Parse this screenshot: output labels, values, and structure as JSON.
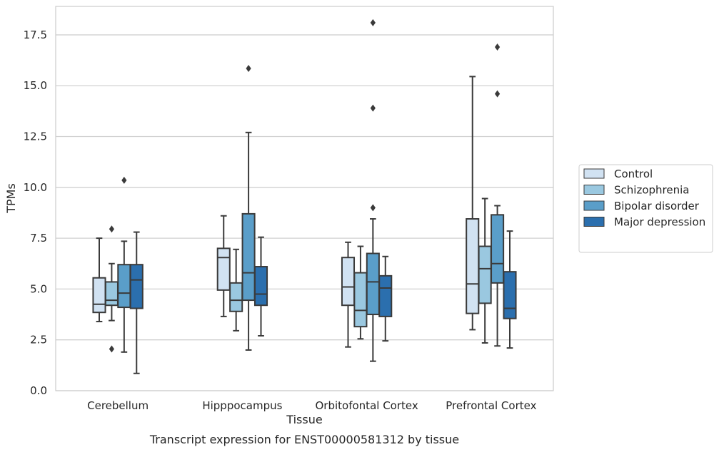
{
  "caption": "Transcript expression for ENST00000581312 by tissue",
  "chart_data": {
    "type": "boxplot",
    "xlabel": "Tissue",
    "ylabel": "TPMs",
    "ylim": [
      0,
      18.9
    ],
    "yticks": [
      0.0,
      2.5,
      5.0,
      7.5,
      10.0,
      12.5,
      15.0,
      17.5
    ],
    "ytick_labels": [
      "0.0",
      "2.5",
      "5.0",
      "7.5",
      "10.0",
      "12.5",
      "15.0",
      "17.5"
    ],
    "grid": "horizontal",
    "legend_position": "right",
    "categories": [
      "Cerebellum",
      "Hipppocampus",
      "Orbitofontal Cortex",
      "Prefrontal Cortex"
    ],
    "series": [
      {
        "name": "Control",
        "color": "#d1e2f2",
        "boxes": [
          {
            "whisker_low": 3.4,
            "q1": 3.85,
            "median": 4.25,
            "q3": 5.55,
            "whisker_high": 7.5,
            "outliers": []
          },
          {
            "whisker_low": 3.65,
            "q1": 4.95,
            "median": 6.55,
            "q3": 7.0,
            "whisker_high": 8.6,
            "outliers": []
          },
          {
            "whisker_low": 2.15,
            "q1": 4.2,
            "median": 5.1,
            "q3": 6.55,
            "whisker_high": 7.3,
            "outliers": []
          },
          {
            "whisker_low": 3.0,
            "q1": 3.8,
            "median": 5.25,
            "q3": 8.45,
            "whisker_high": 15.45,
            "outliers": []
          }
        ]
      },
      {
        "name": "Schizophrenia",
        "color": "#9ac8e0",
        "boxes": [
          {
            "whisker_low": 3.45,
            "q1": 4.2,
            "median": 4.45,
            "q3": 5.35,
            "whisker_high": 6.25,
            "outliers": [
              7.95,
              2.05
            ]
          },
          {
            "whisker_low": 2.95,
            "q1": 3.9,
            "median": 4.45,
            "q3": 5.3,
            "whisker_high": 6.95,
            "outliers": []
          },
          {
            "whisker_low": 2.55,
            "q1": 3.15,
            "median": 3.95,
            "q3": 5.8,
            "whisker_high": 7.1,
            "outliers": []
          },
          {
            "whisker_low": 2.35,
            "q1": 4.3,
            "median": 6.0,
            "q3": 7.1,
            "whisker_high": 9.45,
            "outliers": []
          }
        ]
      },
      {
        "name": "Bipolar disorder",
        "color": "#5a9ec9",
        "boxes": [
          {
            "whisker_low": 1.9,
            "q1": 4.1,
            "median": 4.8,
            "q3": 6.2,
            "whisker_high": 7.35,
            "outliers": [
              10.35
            ]
          },
          {
            "whisker_low": 2.0,
            "q1": 4.45,
            "median": 5.8,
            "q3": 8.7,
            "whisker_high": 12.7,
            "outliers": [
              15.85
            ]
          },
          {
            "whisker_low": 1.45,
            "q1": 3.75,
            "median": 5.35,
            "q3": 6.75,
            "whisker_high": 8.45,
            "outliers": [
              18.1,
              13.9,
              9.0
            ]
          },
          {
            "whisker_low": 2.2,
            "q1": 5.3,
            "median": 6.25,
            "q3": 8.65,
            "whisker_high": 9.1,
            "outliers": [
              16.9,
              14.6
            ]
          }
        ]
      },
      {
        "name": "Major depression",
        "color": "#2b6fae",
        "boxes": [
          {
            "whisker_low": 0.85,
            "q1": 4.05,
            "median": 5.45,
            "q3": 6.2,
            "whisker_high": 7.8,
            "outliers": []
          },
          {
            "whisker_low": 2.7,
            "q1": 4.2,
            "median": 4.75,
            "q3": 6.1,
            "whisker_high": 7.55,
            "outliers": []
          },
          {
            "whisker_low": 2.45,
            "q1": 3.65,
            "median": 5.05,
            "q3": 5.65,
            "whisker_high": 6.6,
            "outliers": []
          },
          {
            "whisker_low": 2.1,
            "q1": 3.55,
            "median": 4.05,
            "q3": 5.85,
            "whisker_high": 7.85,
            "outliers": []
          }
        ]
      }
    ]
  }
}
